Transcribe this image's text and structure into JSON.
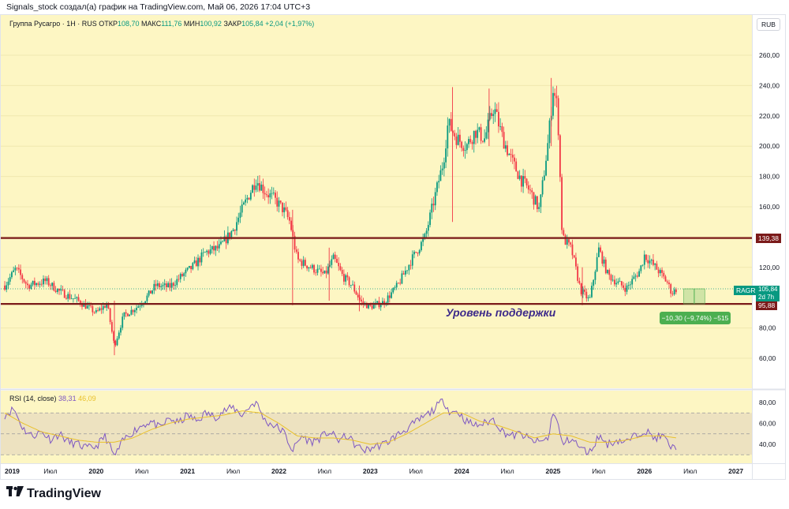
{
  "header": {
    "credit": "Signals_stock создал(а) график на TradingView.com, Май 06, 2026 17:04 UTC+3"
  },
  "legend": {
    "symbol": "Группа Русагро · 1Н · RUS",
    "open_label": "ОТКР",
    "open_value": "108,70",
    "high_label": "МАКС",
    "high_value": "111,76",
    "low_label": "МИН",
    "low_value": "100,92",
    "close_label": "ЗАКР",
    "close_value": "105,84",
    "change": "+2,04 (+1,97%)"
  },
  "currency": "RUB",
  "annotations": {
    "support_text": "Уровень поддержки",
    "measure_text": "−10,30 (−9,74%) −515"
  },
  "price_tags": {
    "resistance": "139,38",
    "support": "95,88",
    "ticker": "RAGR",
    "last_price": "105,84",
    "countdown": "2d 7h"
  },
  "rsi_legend": {
    "label": "RSI (14, close)",
    "value1": "38,31",
    "value2": "46,09"
  },
  "logo": {
    "text": "TradingView",
    "icon": "tradingview-logo-icon"
  },
  "colors": {
    "background": "#fdf6c3",
    "up": "#089981",
    "down": "#f23645",
    "level_line": "#7b1a1a",
    "rsi_line": "#7e57c2",
    "rsi_ma": "#e9c12c",
    "rsi_band": "#ede2c0"
  },
  "chart_data": [
    {
      "type": "candlestick",
      "interval": "1W",
      "y_ticks": [
        60,
        80,
        120,
        140,
        160,
        180,
        200,
        220,
        240,
        260
      ],
      "y_tick_labels": [
        "60,00",
        "80,00",
        "120,00",
        "140,00",
        "160,00",
        "180,00",
        "200,00",
        "220,00",
        "240,00",
        "260,00"
      ],
      "ylim": [
        45,
        275
      ],
      "x_ticks": [
        "2019",
        "Июл",
        "2020",
        "Июл",
        "2021",
        "Июл",
        "2022",
        "Июл",
        "2023",
        "Июл",
        "2024",
        "Июл",
        "2025",
        "Июл",
        "2026",
        "Июл",
        "2027"
      ],
      "x_tick_years": [
        2019.0,
        2019.5,
        2020.0,
        2020.5,
        2021.0,
        2021.5,
        2022.0,
        2022.5,
        2023.0,
        2023.5,
        2024.0,
        2024.5,
        2025.0,
        2025.5,
        2026.0,
        2026.5,
        2027.0
      ],
      "xlim": [
        2019.0,
        2027.15
      ],
      "horizontal_levels": [
        139.38,
        95.88
      ],
      "last_price": 105.84,
      "price_path": [
        [
          2019.0,
          108
        ],
        [
          2019.12,
          119
        ],
        [
          2019.25,
          108
        ],
        [
          2019.45,
          111
        ],
        [
          2019.6,
          104
        ],
        [
          2019.8,
          98
        ],
        [
          2020.0,
          90
        ],
        [
          2020.12,
          96
        ],
        [
          2020.2,
          68
        ],
        [
          2020.3,
          88
        ],
        [
          2020.45,
          94
        ],
        [
          2020.55,
          100
        ],
        [
          2020.65,
          108
        ],
        [
          2020.8,
          107
        ],
        [
          2020.95,
          115
        ],
        [
          2021.05,
          120
        ],
        [
          2021.2,
          130
        ],
        [
          2021.35,
          133
        ],
        [
          2021.5,
          145
        ],
        [
          2021.65,
          165
        ],
        [
          2021.75,
          178
        ],
        [
          2021.85,
          170
        ],
        [
          2021.95,
          165
        ],
        [
          2022.05,
          158
        ],
        [
          2022.12,
          150
        ],
        [
          2022.2,
          125
        ],
        [
          2022.35,
          120
        ],
        [
          2022.5,
          115
        ],
        [
          2022.6,
          126
        ],
        [
          2022.7,
          114
        ],
        [
          2022.8,
          108
        ],
        [
          2022.9,
          97
        ],
        [
          2023.0,
          94
        ],
        [
          2023.15,
          97
        ],
        [
          2023.3,
          108
        ],
        [
          2023.45,
          125
        ],
        [
          2023.6,
          140
        ],
        [
          2023.7,
          165
        ],
        [
          2023.8,
          190
        ],
        [
          2023.85,
          215
        ],
        [
          2023.95,
          205
        ],
        [
          2024.05,
          200
        ],
        [
          2024.15,
          210
        ],
        [
          2024.25,
          205
        ],
        [
          2024.35,
          226
        ],
        [
          2024.45,
          205
        ],
        [
          2024.55,
          190
        ],
        [
          2024.65,
          178
        ],
        [
          2024.75,
          170
        ],
        [
          2024.85,
          158
        ],
        [
          2024.95,
          205
        ],
        [
          2025.0,
          238
        ],
        [
          2025.05,
          225
        ],
        [
          2025.1,
          140
        ],
        [
          2025.2,
          132
        ],
        [
          2025.3,
          105
        ],
        [
          2025.4,
          98
        ],
        [
          2025.5,
          132
        ],
        [
          2025.6,
          115
        ],
        [
          2025.7,
          110
        ],
        [
          2025.8,
          106
        ],
        [
          2025.95,
          118
        ],
        [
          2026.0,
          128
        ],
        [
          2026.15,
          118
        ],
        [
          2026.25,
          110
        ],
        [
          2026.3,
          103
        ],
        [
          2026.35,
          105.84
        ]
      ],
      "spikes": [
        [
          2020.2,
          62,
          98
        ],
        [
          2022.15,
          95,
          158
        ],
        [
          2022.55,
          98,
          133
        ],
        [
          2022.88,
          91,
          108
        ],
        [
          2023.9,
          150,
          239
        ],
        [
          2024.3,
          200,
          238
        ],
        [
          2024.98,
          200,
          245
        ],
        [
          2025.32,
          95,
          120
        ]
      ]
    },
    {
      "type": "line",
      "name": "RSI (14, close)",
      "y_tick_labels": [
        "40,00",
        "60,00",
        "80,00"
      ],
      "y_ticks": [
        40,
        60,
        80
      ],
      "ylim": [
        26,
        86
      ],
      "bands": [
        30,
        50,
        70
      ],
      "rsi_path": [
        [
          2019.0,
          68
        ],
        [
          2019.1,
          74
        ],
        [
          2019.2,
          55
        ],
        [
          2019.3,
          48
        ],
        [
          2019.4,
          52
        ],
        [
          2019.5,
          45
        ],
        [
          2019.6,
          50
        ],
        [
          2019.7,
          42
        ],
        [
          2019.8,
          40
        ],
        [
          2019.9,
          36
        ],
        [
          2020.0,
          38
        ],
        [
          2020.1,
          48
        ],
        [
          2020.2,
          28
        ],
        [
          2020.3,
          44
        ],
        [
          2020.4,
          52
        ],
        [
          2020.5,
          58
        ],
        [
          2020.6,
          62
        ],
        [
          2020.7,
          55
        ],
        [
          2020.8,
          65
        ],
        [
          2020.9,
          60
        ],
        [
          2021.0,
          68
        ],
        [
          2021.1,
          62
        ],
        [
          2021.2,
          70
        ],
        [
          2021.3,
          66
        ],
        [
          2021.4,
          72
        ],
        [
          2021.5,
          75
        ],
        [
          2021.6,
          68
        ],
        [
          2021.7,
          78
        ],
        [
          2021.75,
          80
        ],
        [
          2021.85,
          62
        ],
        [
          2021.95,
          58
        ],
        [
          2022.05,
          52
        ],
        [
          2022.15,
          34
        ],
        [
          2022.25,
          48
        ],
        [
          2022.35,
          42
        ],
        [
          2022.45,
          46
        ],
        [
          2022.55,
          52
        ],
        [
          2022.65,
          44
        ],
        [
          2022.75,
          48
        ],
        [
          2022.85,
          38
        ],
        [
          2022.95,
          34
        ],
        [
          2023.05,
          38
        ],
        [
          2023.15,
          40
        ],
        [
          2023.25,
          46
        ],
        [
          2023.35,
          52
        ],
        [
          2023.45,
          58
        ],
        [
          2023.55,
          64
        ],
        [
          2023.65,
          70
        ],
        [
          2023.75,
          78
        ],
        [
          2023.8,
          82
        ],
        [
          2023.88,
          70
        ],
        [
          2023.95,
          72
        ],
        [
          2024.05,
          62
        ],
        [
          2024.15,
          58
        ],
        [
          2024.25,
          60
        ],
        [
          2024.35,
          64
        ],
        [
          2024.45,
          52
        ],
        [
          2024.55,
          48
        ],
        [
          2024.65,
          50
        ],
        [
          2024.75,
          44
        ],
        [
          2024.85,
          42
        ],
        [
          2024.95,
          46
        ],
        [
          2025.0,
          72
        ],
        [
          2025.05,
          60
        ],
        [
          2025.1,
          40
        ],
        [
          2025.2,
          46
        ],
        [
          2025.3,
          36
        ],
        [
          2025.4,
          32
        ],
        [
          2025.5,
          48
        ],
        [
          2025.6,
          40
        ],
        [
          2025.7,
          44
        ],
        [
          2025.8,
          42
        ],
        [
          2025.9,
          48
        ],
        [
          2026.0,
          54
        ],
        [
          2026.1,
          46
        ],
        [
          2026.2,
          48
        ],
        [
          2026.3,
          36
        ],
        [
          2026.35,
          38.31
        ]
      ],
      "ma_path": [
        [
          2019.0,
          70
        ],
        [
          2019.2,
          60
        ],
        [
          2019.4,
          52
        ],
        [
          2019.6,
          48
        ],
        [
          2019.8,
          44
        ],
        [
          2020.0,
          42
        ],
        [
          2020.2,
          42
        ],
        [
          2020.4,
          46
        ],
        [
          2020.6,
          54
        ],
        [
          2020.8,
          60
        ],
        [
          2021.0,
          64
        ],
        [
          2021.2,
          66
        ],
        [
          2021.4,
          68
        ],
        [
          2021.6,
          72
        ],
        [
          2021.8,
          70
        ],
        [
          2022.0,
          60
        ],
        [
          2022.2,
          48
        ],
        [
          2022.4,
          46
        ],
        [
          2022.6,
          46
        ],
        [
          2022.8,
          44
        ],
        [
          2023.0,
          40
        ],
        [
          2023.2,
          42
        ],
        [
          2023.4,
          50
        ],
        [
          2023.6,
          60
        ],
        [
          2023.8,
          70
        ],
        [
          2024.0,
          70
        ],
        [
          2024.2,
          62
        ],
        [
          2024.4,
          58
        ],
        [
          2024.6,
          52
        ],
        [
          2024.8,
          46
        ],
        [
          2025.0,
          50
        ],
        [
          2025.2,
          48
        ],
        [
          2025.4,
          42
        ],
        [
          2025.6,
          42
        ],
        [
          2025.8,
          44
        ],
        [
          2026.0,
          48
        ],
        [
          2026.2,
          48
        ],
        [
          2026.35,
          46.09
        ]
      ]
    }
  ]
}
